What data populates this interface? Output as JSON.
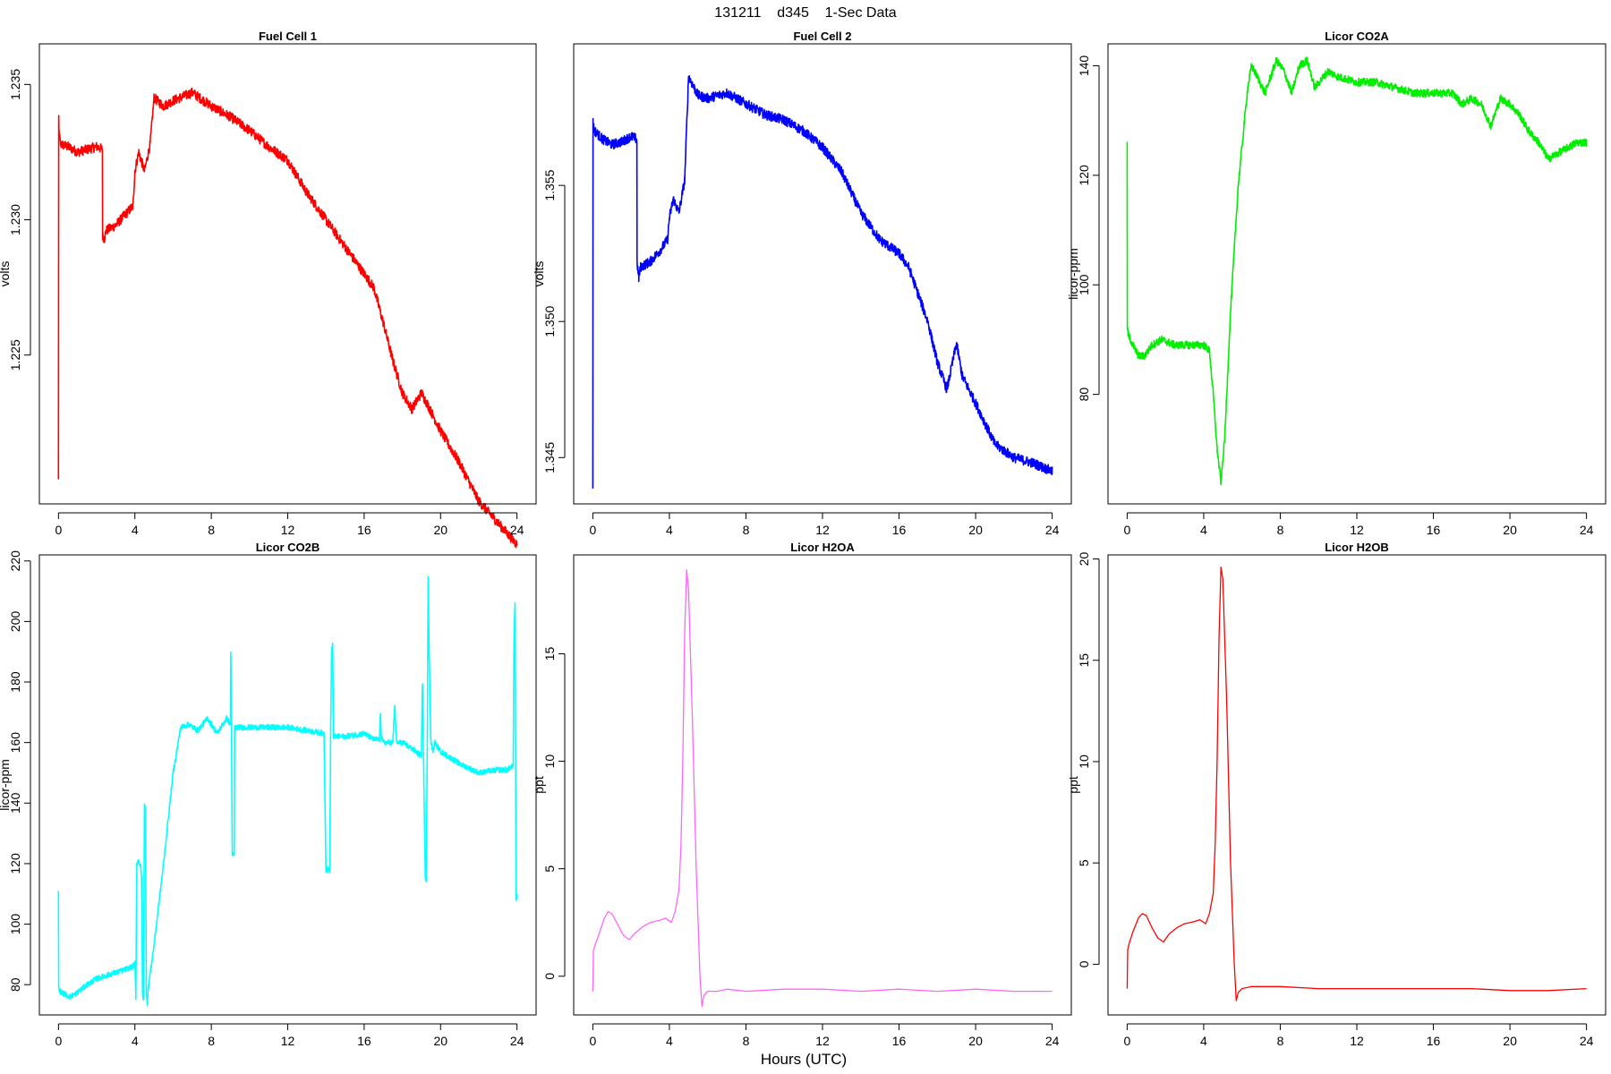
{
  "figure": {
    "title": "131211    d345    1-Sec Data",
    "xlabel": "Hours (UTC)"
  },
  "chart_data": [
    {
      "type": "line",
      "title": "Fuel Cell 1",
      "ylabel": "volts",
      "color": "#ff0000",
      "xlim": [
        -1,
        25
      ],
      "ylim": [
        1.2195,
        1.2365
      ],
      "xticks": [
        0,
        4,
        8,
        12,
        16,
        20,
        24
      ],
      "yticks": [
        1.225,
        1.23,
        1.235
      ],
      "ytick_labels": [
        "1.225",
        "1.230",
        "1.235"
      ],
      "noise": 0.00018,
      "series": [
        {
          "x": [
            0,
            0.01,
            0.02,
            0.1,
            0.5,
            1.0,
            1.5,
            2.0,
            2.3,
            2.31,
            2.4,
            2.5,
            3.0,
            3.5,
            3.9,
            4.0,
            4.2,
            4.5,
            4.8,
            5.0,
            5.5,
            6.0,
            7.0,
            8.0,
            9.0,
            10.0,
            11.0,
            12.0,
            13.0,
            14.0,
            15.0,
            16.0,
            16.5,
            17.0,
            17.5,
            18.0,
            18.5,
            19.0,
            19.3,
            20.0,
            21.0,
            22.0,
            23.0,
            24.0
          ],
          "y": [
            1.2205,
            1.2338,
            1.2333,
            1.2328,
            1.2327,
            1.2325,
            1.2326,
            1.2327,
            1.2326,
            1.2294,
            1.2293,
            1.2296,
            1.2298,
            1.2302,
            1.2305,
            1.2318,
            1.2325,
            1.2318,
            1.2328,
            1.2345,
            1.2342,
            1.2344,
            1.2347,
            1.2342,
            1.2338,
            1.2333,
            1.2327,
            1.2322,
            1.231,
            1.23,
            1.229,
            1.228,
            1.2275,
            1.2262,
            1.2248,
            1.2236,
            1.223,
            1.2236,
            1.2232,
            1.2222,
            1.221,
            1.2196,
            1.2188,
            1.218
          ]
        }
      ]
    },
    {
      "type": "line",
      "title": "Fuel Cell 2",
      "ylabel": "volts",
      "color": "#0000ff",
      "xlim": [
        -1,
        25
      ],
      "ylim": [
        1.3433,
        1.3602
      ],
      "xticks": [
        0,
        4,
        8,
        12,
        16,
        20,
        24
      ],
      "yticks": [
        1.345,
        1.35,
        1.355
      ],
      "ytick_labels": [
        "1.345",
        "1.350",
        "1.355"
      ],
      "noise": 0.00018,
      "series": [
        {
          "x": [
            0,
            0.01,
            0.02,
            0.1,
            0.5,
            1.0,
            1.5,
            2.0,
            2.3,
            2.31,
            2.4,
            2.5,
            3.0,
            3.5,
            3.9,
            4.0,
            4.2,
            4.5,
            4.8,
            5.0,
            5.5,
            6.0,
            7.0,
            8.0,
            9.0,
            10.0,
            11.0,
            12.0,
            13.0,
            14.0,
            15.0,
            16.0,
            16.5,
            17.0,
            17.5,
            18.0,
            18.5,
            19.0,
            19.3,
            20.0,
            21.0,
            22.0,
            23.0,
            24.0
          ],
          "y": [
            1.344,
            1.3575,
            1.3572,
            1.357,
            1.3567,
            1.3565,
            1.3566,
            1.3568,
            1.3567,
            1.3522,
            1.3516,
            1.352,
            1.3522,
            1.3526,
            1.353,
            1.3538,
            1.3545,
            1.354,
            1.3552,
            1.359,
            1.3583,
            1.3582,
            1.3584,
            1.358,
            1.3576,
            1.3574,
            1.357,
            1.3564,
            1.3555,
            1.354,
            1.353,
            1.3525,
            1.352,
            1.351,
            1.35,
            1.3485,
            1.3475,
            1.3492,
            1.348,
            1.347,
            1.3455,
            1.345,
            1.3448,
            1.3445
          ]
        }
      ]
    },
    {
      "type": "line",
      "title": "Licor CO2A",
      "ylabel": "licor-ppm",
      "color": "#00ee00",
      "xlim": [
        -1,
        25
      ],
      "ylim": [
        60,
        144
      ],
      "xticks": [
        0,
        4,
        8,
        12,
        16,
        20,
        24
      ],
      "yticks": [
        80,
        100,
        120,
        140
      ],
      "ytick_labels": [
        "80",
        "100",
        "120",
        "140"
      ],
      "noise": 0.7,
      "series": [
        {
          "x": [
            0,
            0.01,
            0.05,
            0.3,
            0.6,
            0.9,
            1.3,
            1.8,
            2.5,
            3.0,
            3.5,
            4.0,
            4.3,
            4.5,
            4.7,
            4.9,
            5.1,
            5.4,
            5.8,
            6.3,
            6.5,
            6.8,
            7.2,
            7.5,
            7.8,
            8.2,
            8.6,
            9.0,
            9.4,
            9.8,
            10.5,
            11.0,
            12.0,
            13.0,
            14.0,
            15.0,
            16.0,
            17.0,
            17.5,
            18.0,
            18.5,
            19.0,
            19.5,
            20.0,
            20.5,
            21.0,
            21.5,
            22.0,
            22.5,
            23.0,
            23.5,
            24.0
          ],
          "y": [
            126,
            92,
            91,
            89,
            87,
            87,
            89,
            90,
            89,
            89,
            89,
            89,
            88,
            80,
            70,
            64,
            72,
            95,
            118,
            136,
            140,
            138,
            135,
            138,
            141,
            139,
            135,
            140,
            141,
            136,
            139,
            138,
            137,
            137,
            136,
            135,
            135,
            135,
            133,
            134,
            133,
            129,
            134,
            133,
            131,
            128,
            126,
            123,
            124,
            125,
            126,
            126
          ]
        }
      ]
    },
    {
      "type": "line",
      "title": "Licor CO2B",
      "ylabel": "licor-ppm",
      "color": "#00ffff",
      "xlim": [
        -1,
        25
      ],
      "ylim": [
        70,
        222
      ],
      "xticks": [
        0,
        4,
        8,
        12,
        16,
        20,
        24
      ],
      "yticks": [
        80,
        100,
        120,
        140,
        160,
        180,
        200,
        220
      ],
      "ytick_labels": [
        "80",
        "100",
        "120",
        "140",
        "160",
        "180",
        "200",
        "220"
      ],
      "noise": 0.9,
      "series": [
        {
          "x": [
            0,
            0.01,
            0.05,
            0.3,
            0.6,
            0.9,
            1.5,
            2.0,
            2.5,
            3.0,
            3.5,
            3.9,
            4.0,
            4.05,
            4.1,
            4.2,
            4.3,
            4.35,
            4.4,
            4.45,
            4.5,
            4.55,
            4.6,
            4.65,
            4.7,
            5.0,
            5.5,
            6.0,
            6.4,
            6.8,
            7.3,
            7.8,
            8.3,
            8.8,
            9.0,
            9.02,
            9.05,
            9.1,
            9.15,
            9.2,
            9.22,
            9.3,
            10.0,
            11.0,
            12.0,
            13.0,
            13.9,
            14.0,
            14.2,
            14.25,
            14.3,
            14.35,
            14.4,
            15.0,
            16.0,
            16.5,
            16.8,
            16.85,
            16.9,
            17.0,
            17.5,
            17.6,
            17.7,
            18.0,
            18.5,
            18.9,
            19.0,
            19.05,
            19.2,
            19.25,
            19.3,
            19.35,
            19.4,
            19.5,
            19.6,
            19.7,
            20.0,
            21.0,
            22.0,
            23.0,
            23.5,
            23.7,
            23.8,
            23.85,
            23.9,
            23.95,
            24.0
          ],
          "y": [
            110,
            79,
            78,
            77,
            76,
            77,
            80,
            82,
            83,
            84,
            85,
            86,
            87,
            76,
            120,
            121,
            119,
            115,
            77,
            75,
            140,
            138,
            77,
            74,
            79,
            93,
            120,
            150,
            165,
            166,
            164,
            168,
            163,
            168,
            166,
            190,
            168,
            122,
            123,
            123,
            165,
            165,
            165,
            165,
            165,
            164,
            163,
            118,
            118,
            166,
            191,
            192,
            162,
            162,
            163,
            161,
            161,
            169,
            162,
            160,
            160,
            172,
            160,
            160,
            158,
            156,
            156,
            180,
            115,
            115,
            155,
            215,
            190,
            160,
            157,
            160,
            157,
            153,
            150,
            151,
            151,
            152,
            152,
            198,
            206,
            108,
            109
          ]
        }
      ]
    },
    {
      "type": "line",
      "title": "Licor H2OA",
      "ylabel": "ppt",
      "color": "#ff66ff",
      "xlim": [
        -1,
        25
      ],
      "ylim": [
        -1.8,
        19.6
      ],
      "xticks": [
        0,
        4,
        8,
        12,
        16,
        20,
        24
      ],
      "yticks": [
        0,
        5,
        10,
        15
      ],
      "ytick_labels": [
        "0",
        "5",
        "10",
        "15"
      ],
      "noise": 0,
      "series": [
        {
          "x": [
            0,
            0.03,
            0.1,
            0.3,
            0.6,
            0.8,
            1.0,
            1.3,
            1.6,
            1.9,
            2.2,
            2.6,
            3.0,
            3.5,
            3.8,
            4.1,
            4.3,
            4.5,
            4.6,
            4.7,
            4.8,
            4.9,
            5.0,
            5.2,
            5.4,
            5.6,
            5.7,
            5.8,
            6.0,
            6.5,
            7.0,
            8.0,
            10.0,
            12.0,
            14.0,
            16.0,
            18.0,
            20.0,
            22.0,
            24.0
          ],
          "y": [
            -0.7,
            1.2,
            1.4,
            1.9,
            2.7,
            3.0,
            2.9,
            2.4,
            1.9,
            1.7,
            2.0,
            2.3,
            2.5,
            2.6,
            2.7,
            2.5,
            3.0,
            4.0,
            6.0,
            10.0,
            16.0,
            18.9,
            18.0,
            12.0,
            5.0,
            0.0,
            -1.4,
            -0.9,
            -0.7,
            -0.7,
            -0.6,
            -0.7,
            -0.6,
            -0.6,
            -0.7,
            -0.6,
            -0.7,
            -0.6,
            -0.7,
            -0.7
          ]
        }
      ]
    },
    {
      "type": "line",
      "title": "Licor H2OB",
      "ylabel": "ppt",
      "color": "#ff0000",
      "xlim": [
        -1,
        25
      ],
      "ylim": [
        -2.5,
        20.2
      ],
      "xticks": [
        0,
        4,
        8,
        12,
        16,
        20,
        24
      ],
      "yticks": [
        0,
        5,
        10,
        15,
        20
      ],
      "ytick_labels": [
        "0",
        "5",
        "10",
        "15",
        "20"
      ],
      "noise": 0,
      "series": [
        {
          "x": [
            0,
            0.03,
            0.1,
            0.3,
            0.6,
            0.8,
            1.0,
            1.3,
            1.6,
            1.9,
            2.2,
            2.6,
            3.0,
            3.5,
            3.8,
            4.1,
            4.3,
            4.5,
            4.6,
            4.7,
            4.8,
            4.9,
            5.0,
            5.2,
            5.4,
            5.6,
            5.7,
            5.8,
            6.0,
            6.5,
            7.0,
            8.0,
            10.0,
            12.0,
            14.0,
            16.0,
            18.0,
            20.0,
            22.0,
            24.0
          ],
          "y": [
            -1.2,
            0.7,
            1.0,
            1.6,
            2.3,
            2.5,
            2.4,
            1.8,
            1.3,
            1.1,
            1.5,
            1.8,
            2.0,
            2.1,
            2.2,
            2.0,
            2.5,
            3.5,
            6.0,
            10.0,
            16.0,
            19.6,
            19.0,
            13.0,
            5.0,
            0.0,
            -1.8,
            -1.4,
            -1.2,
            -1.1,
            -1.1,
            -1.1,
            -1.2,
            -1.2,
            -1.2,
            -1.2,
            -1.2,
            -1.3,
            -1.3,
            -1.2
          ]
        }
      ]
    }
  ]
}
